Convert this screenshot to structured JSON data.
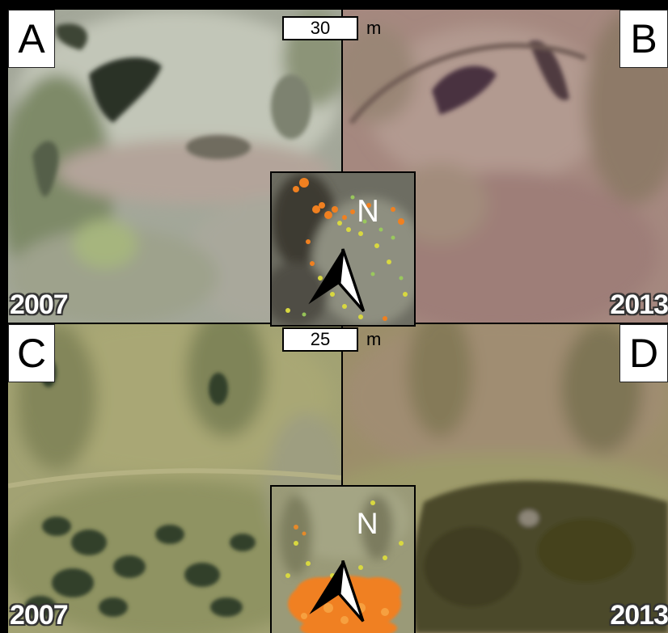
{
  "figure": {
    "panels": [
      {
        "id": "A",
        "year": "2007"
      },
      {
        "id": "B",
        "year": "2013"
      },
      {
        "id": "C",
        "year": "2007"
      },
      {
        "id": "D",
        "year": "2013"
      }
    ],
    "scale_top": {
      "value": "30",
      "unit": "m"
    },
    "scale_bottom": {
      "value": "25",
      "unit": "m"
    },
    "north_label": "N",
    "icons": [
      "north-arrow-icon"
    ],
    "colors": {
      "change_orange": "#f08020",
      "change_yellow": "#d8d840",
      "change_green": "#9ccf5a"
    }
  }
}
